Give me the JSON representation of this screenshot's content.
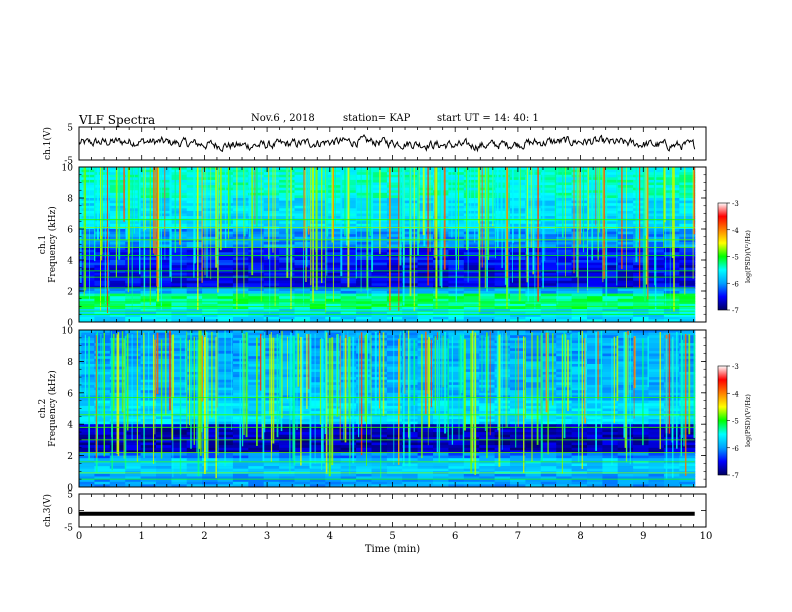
{
  "header": {
    "title": "VLF Spectra",
    "date": "Nov.6  , 2018",
    "station": "station= KAP",
    "start_time": "start  UT =   14: 40: 1"
  },
  "chart_data": [
    {
      "type": "line",
      "panel": "ch1-waveform",
      "ylabel": "ch.1(V)",
      "ylim": [
        -5,
        5
      ],
      "yticks": [
        "5",
        "-5"
      ],
      "xlim": [
        0,
        10
      ],
      "description_values": "continuous noisy waveform around 0 V, amplitude about ±2 V, ending near 9.8 min"
    },
    {
      "type": "heatmap",
      "panel": "ch1-spectrogram",
      "ylabel": "ch.1\nFrequency  (kHz)",
      "ylim": [
        0,
        10
      ],
      "yticks": [
        "0",
        "2",
        "4",
        "6",
        "8",
        "10"
      ],
      "xlim": [
        0,
        10
      ],
      "colorbar": {
        "label": "log(PSD)(V²/Hz)",
        "range": [
          -7,
          -3
        ],
        "ticks": [
          "-3",
          "-4",
          "-5",
          "-6",
          "-7"
        ],
        "colors": [
          "#000060",
          "#0000ff",
          "#00a0ff",
          "#00ffff",
          "#00ff00",
          "#ffff00",
          "#ff8000",
          "#ff0000",
          "#ffffff"
        ]
      }
    },
    {
      "type": "heatmap",
      "panel": "ch2-spectrogram",
      "ylabel": "ch.2\nFrequency  (kHz)",
      "ylim": [
        0,
        10
      ],
      "yticks": [
        "0",
        "2",
        "4",
        "6",
        "8",
        "10"
      ],
      "xlim": [
        0,
        10
      ],
      "colorbar": {
        "label": "log(PSD)(V²/Hz)",
        "range": [
          -7,
          -3
        ],
        "ticks": [
          "-3",
          "-4",
          "-5",
          "-6",
          "-7"
        ]
      }
    },
    {
      "type": "line",
      "panel": "ch3-waveform",
      "ylabel": "ch.3(V)",
      "ylim": [
        -5,
        5
      ],
      "yticks": [
        "5",
        "0",
        "-5"
      ],
      "xlim": [
        0,
        10
      ],
      "values_note": "constant flat thick line at about -1 V"
    }
  ],
  "xaxis": {
    "label": "Time  (min)",
    "ticks": [
      "0",
      "1",
      "2",
      "3",
      "4",
      "5",
      "6",
      "7",
      "8",
      "9",
      "10"
    ]
  }
}
